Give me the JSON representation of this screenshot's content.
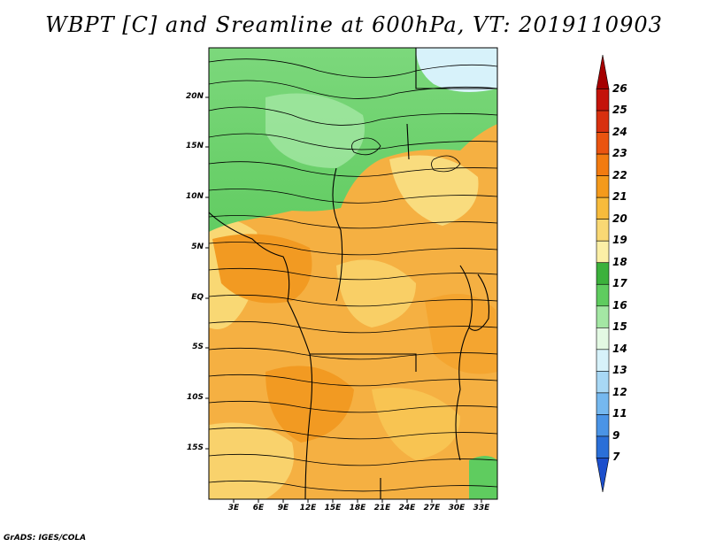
{
  "title": "WBPT [C] and Sreamline at 600hPa, VT: 2019110903",
  "footer": "GrADS: IGES/COLA",
  "y_ticks": [
    "20N",
    "15N",
    "10N",
    "5N",
    "EQ",
    "5S",
    "10S",
    "15S"
  ],
  "x_ticks": [
    "3E",
    "6E",
    "9E",
    "12E",
    "15E",
    "18E",
    "21E",
    "24E",
    "27E",
    "30E",
    "33E"
  ],
  "colorbar": {
    "labels": [
      "26",
      "25",
      "24",
      "23",
      "22",
      "21",
      "20",
      "19",
      "18",
      "17",
      "16",
      "15",
      "14",
      "13",
      "12",
      "11",
      "9",
      "7"
    ],
    "colors": [
      "#a50000",
      "#c4130a",
      "#d8300f",
      "#ea5410",
      "#f27b10",
      "#f49a1c",
      "#f7bb3c",
      "#f9d874",
      "#fbefa6",
      "#3cb13c",
      "#5fcc5f",
      "#a4e7a4",
      "#e3f9e3",
      "#d7f2fa",
      "#a8d8f5",
      "#75b8ef",
      "#4a94e6",
      "#2a6fd8",
      "#1c4fcc"
    ]
  }
}
